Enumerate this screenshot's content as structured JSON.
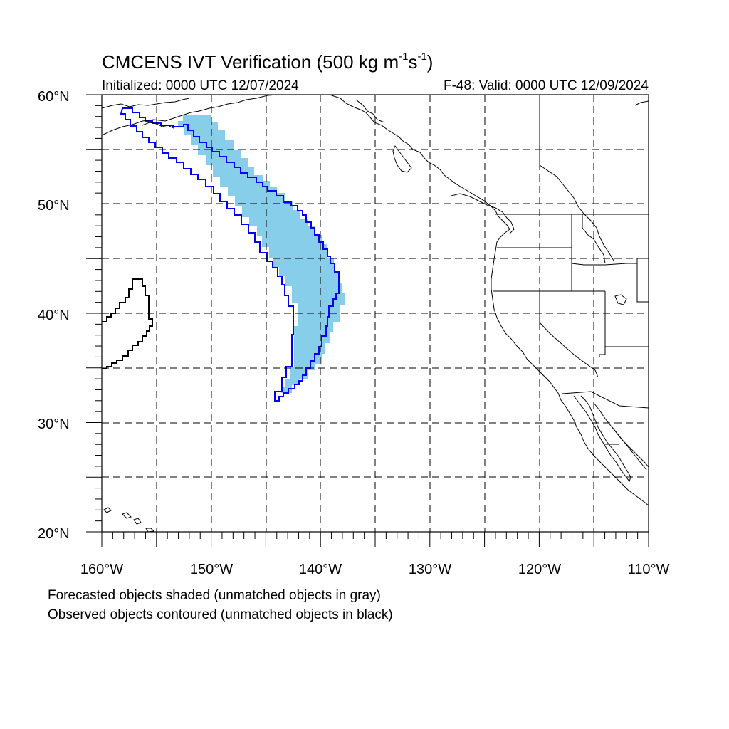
{
  "title": {
    "prefix": "CMCENS IVT Verification (500 kg m",
    "sup1": "-1",
    "mid": "s",
    "sup2": "-1",
    "suffix": ")"
  },
  "initialized": "Initialized: 0000 UTC 12/07/2024",
  "valid": "F-48: Valid: 0000 UTC 12/09/2024",
  "notes": {
    "line1": "Forecasted objects shaded (unmatched objects in gray)",
    "line2": "Observed objects contoured (unmatched objects in black)"
  },
  "map": {
    "lon_range": [
      -160,
      -110
    ],
    "lat_range": [
      20,
      60
    ],
    "lat_labels": [
      "60°N",
      "50°N",
      "40°N",
      "30°N",
      "20°N"
    ],
    "lon_labels": [
      "160°W",
      "150°W",
      "140°W",
      "130°W",
      "120°W",
      "110°W"
    ],
    "grid": "dashed, every 5°",
    "colors": {
      "forecast_matched": "#87ceeb",
      "observed_matched": "#0000ff",
      "observed_unmatched": "#000000",
      "coastline": "#000000"
    }
  }
}
